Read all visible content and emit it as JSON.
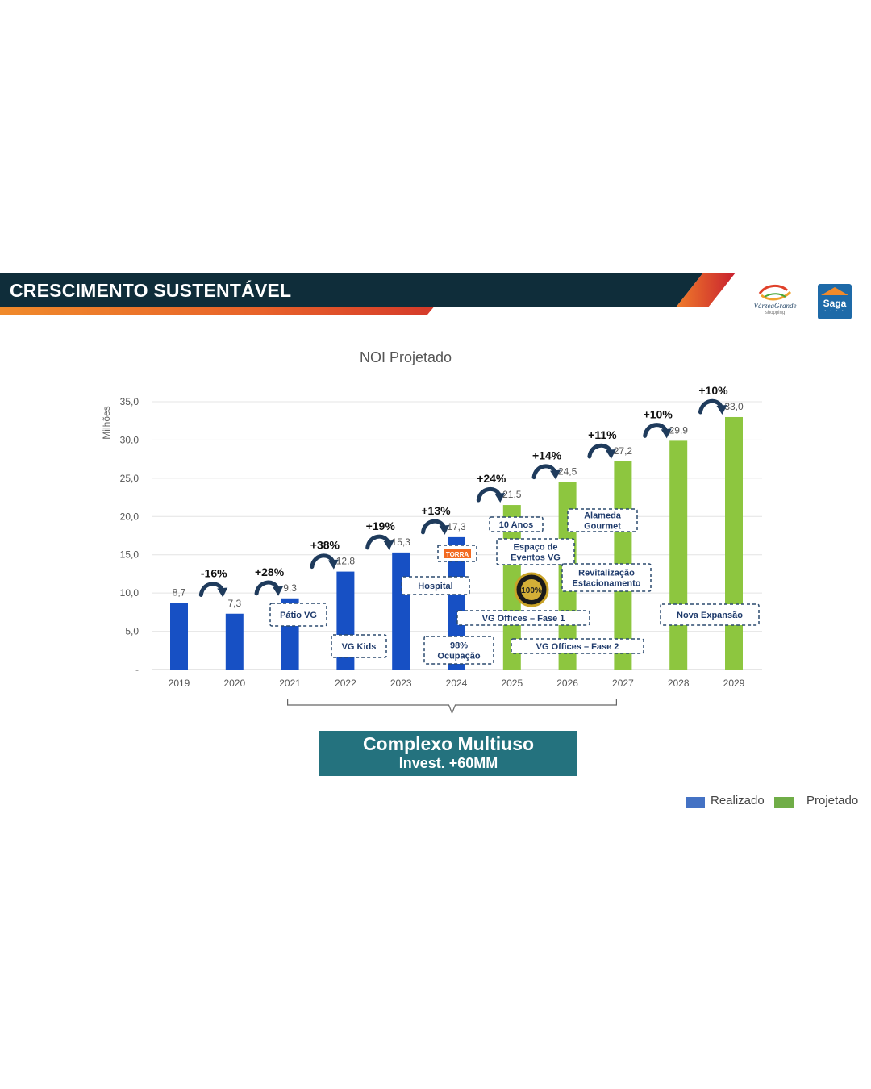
{
  "header": {
    "title": "CRESCIMENTO SUSTENTÁVEL"
  },
  "logos": {
    "vg_name": "VárzeaGrande",
    "vg_sub": "shopping",
    "saga_name": "Saga"
  },
  "chart_data": {
    "type": "bar",
    "title": "NOI Projetado",
    "ylabel": "Milhões",
    "xlabel": "",
    "ylim": [
      0,
      35
    ],
    "y_ticks": [
      "-",
      "5,0",
      "10,0",
      "15,0",
      "20,0",
      "25,0",
      "30,0",
      "35,0"
    ],
    "categories": [
      "2019",
      "2020",
      "2021",
      "2022",
      "2023",
      "2024",
      "2025",
      "2026",
      "2027",
      "2028",
      "2029"
    ],
    "values": [
      8.7,
      7.3,
      9.3,
      12.8,
      15.3,
      17.3,
      21.5,
      24.5,
      27.2,
      29.9,
      33.0
    ],
    "value_labels": [
      "8,7",
      "7,3",
      "9,3",
      "12,8",
      "15,3",
      "17,3",
      "21,5",
      "24,5",
      "27,2",
      "29,9",
      "33,0"
    ],
    "status": [
      "Realizado",
      "Realizado",
      "Realizado",
      "Realizado",
      "Realizado",
      "Realizado",
      "Projetado",
      "Projetado",
      "Projetado",
      "Projetado",
      "Projetado"
    ],
    "colors": {
      "Realizado": "#1750c4",
      "Projetado": "#8dc63f"
    },
    "growth_labels": [
      "-16%",
      "+28%",
      "+38%",
      "+19%",
      "+13%",
      "+24%",
      "+14%",
      "+11%",
      "+10%",
      "+10%"
    ],
    "grid": true,
    "legend": {
      "position": "bottom-right",
      "items": [
        "Realizado",
        "Projetado"
      ]
    },
    "annotations": [
      "Pátio VG",
      "VG Kids",
      "Hospital",
      "TORRA",
      "98% Ocupação",
      "10 Anos",
      "Espaço de Eventos VG",
      "VG Offices – Fase 1",
      "VG Offices – Fase 2",
      "Alameda Gourmet",
      "Revitalização Estacionamento",
      "Nova Expansão"
    ],
    "badge_text": "100%"
  },
  "multiuso": {
    "line1": "Complexo Multiuso",
    "line2": "Invest. +60MM"
  },
  "legend": {
    "realizado": "Realizado",
    "projetado": "Projetado"
  },
  "colors": {
    "header_dark": "#0f2d3a",
    "accent_orange": "#e8622a",
    "accent_red": "#c8202f",
    "multiuso_bg": "#24727e",
    "dash_border": "#2b4a6f"
  }
}
